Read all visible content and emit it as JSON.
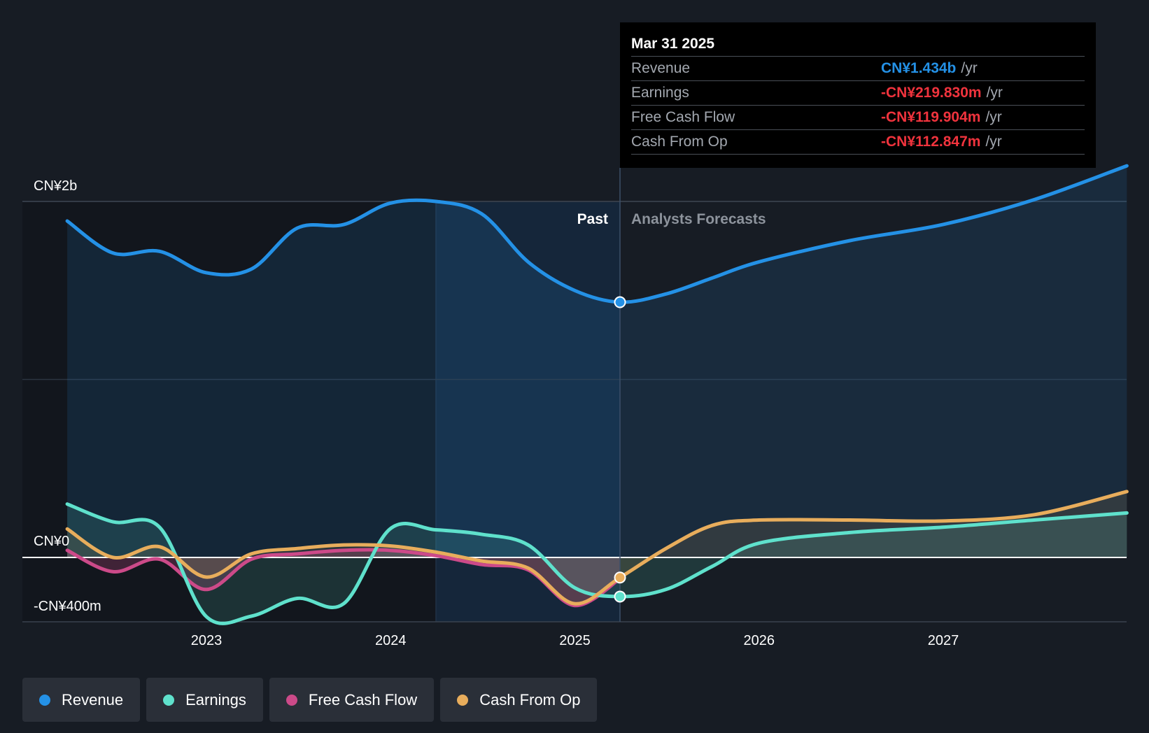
{
  "chart_data": {
    "type": "line",
    "title": "",
    "xlabel": "",
    "ylabel": "",
    "currency_prefix": "CN¥",
    "y_axis_labels": [
      "CN¥2b",
      "CN¥0",
      "-CN¥400m"
    ],
    "x_ticks": [
      "2023",
      "2024",
      "2025",
      "2026",
      "2027"
    ],
    "ylim": [
      -400,
      2000
    ],
    "y_unit": "CN¥m",
    "region_labels": {
      "past": "Past",
      "forecast": "Analysts Forecasts"
    },
    "divider_date": "2025-03-31",
    "series": [
      {
        "name": "Revenue",
        "color": "#2491e6",
        "points": [
          [
            "2022-03-31",
            1890
          ],
          [
            "2022-06-30",
            1710
          ],
          [
            "2022-09-30",
            1720
          ],
          [
            "2022-12-31",
            1600
          ],
          [
            "2023-03-31",
            1620
          ],
          [
            "2023-06-30",
            1850
          ],
          [
            "2023-09-30",
            1870
          ],
          [
            "2023-12-31",
            1990
          ],
          [
            "2024-03-31",
            2000
          ],
          [
            "2024-06-30",
            1930
          ],
          [
            "2024-09-30",
            1660
          ],
          [
            "2024-12-31",
            1500
          ],
          [
            "2025-03-31",
            1434
          ],
          [
            "2025-06-30",
            1480
          ],
          [
            "2025-09-30",
            1570
          ],
          [
            "2025-12-31",
            1660
          ],
          [
            "2026-06-30",
            1780
          ],
          [
            "2026-12-31",
            1870
          ],
          [
            "2027-06-30",
            2010
          ],
          [
            "2027-12-31",
            2200
          ]
        ]
      },
      {
        "name": "Earnings",
        "color": "#5fe1cc",
        "points": [
          [
            "2022-03-31",
            300
          ],
          [
            "2022-06-30",
            200
          ],
          [
            "2022-09-30",
            170
          ],
          [
            "2022-12-31",
            -330
          ],
          [
            "2023-03-31",
            -330
          ],
          [
            "2023-06-30",
            -230
          ],
          [
            "2023-09-30",
            -260
          ],
          [
            "2023-12-31",
            160
          ],
          [
            "2024-03-31",
            155
          ],
          [
            "2024-06-30",
            130
          ],
          [
            "2024-09-30",
            70
          ],
          [
            "2024-12-31",
            -170
          ],
          [
            "2025-03-31",
            -219.83
          ],
          [
            "2025-06-30",
            -180
          ],
          [
            "2025-09-30",
            -50
          ],
          [
            "2025-12-31",
            80
          ],
          [
            "2026-06-30",
            140
          ],
          [
            "2026-12-31",
            170
          ],
          [
            "2027-06-30",
            210
          ],
          [
            "2027-12-31",
            250
          ]
        ]
      },
      {
        "name": "Free Cash Flow",
        "color": "#cc4a89",
        "points": [
          [
            "2022-03-31",
            40
          ],
          [
            "2022-06-30",
            -80
          ],
          [
            "2022-09-30",
            -10
          ],
          [
            "2022-12-31",
            -180
          ],
          [
            "2023-03-31",
            -10
          ],
          [
            "2023-06-30",
            20
          ],
          [
            "2023-09-30",
            40
          ],
          [
            "2023-12-31",
            40
          ],
          [
            "2024-03-31",
            10
          ],
          [
            "2024-06-30",
            -40
          ],
          [
            "2024-09-30",
            -70
          ],
          [
            "2024-12-31",
            -270
          ],
          [
            "2025-03-31",
            -119.904
          ]
        ]
      },
      {
        "name": "Cash From Op",
        "color": "#e8ad5c",
        "points": [
          [
            "2022-03-31",
            160
          ],
          [
            "2022-06-30",
            0
          ],
          [
            "2022-09-30",
            60
          ],
          [
            "2022-12-31",
            -110
          ],
          [
            "2023-03-31",
            20
          ],
          [
            "2023-06-30",
            50
          ],
          [
            "2023-09-30",
            70
          ],
          [
            "2023-12-31",
            65
          ],
          [
            "2024-03-31",
            30
          ],
          [
            "2024-06-30",
            -20
          ],
          [
            "2024-09-30",
            -60
          ],
          [
            "2024-12-31",
            -260
          ],
          [
            "2025-03-31",
            -112.847
          ],
          [
            "2025-06-30",
            50
          ],
          [
            "2025-09-30",
            180
          ],
          [
            "2025-12-31",
            210
          ],
          [
            "2026-06-30",
            210
          ],
          [
            "2026-12-31",
            205
          ],
          [
            "2027-06-30",
            240
          ],
          [
            "2027-12-31",
            370
          ]
        ]
      }
    ]
  },
  "tooltip": {
    "date": "Mar 31 2025",
    "unit": "/yr",
    "rows": [
      {
        "label": "Revenue",
        "value": "CN¥1.434b",
        "color": "#2491e6"
      },
      {
        "label": "Earnings",
        "value": "-CN¥219.830m",
        "color": "#f0333d"
      },
      {
        "label": "Free Cash Flow",
        "value": "-CN¥119.904m",
        "color": "#f0333d"
      },
      {
        "label": "Cash From Op",
        "value": "-CN¥112.847m",
        "color": "#f0333d"
      }
    ]
  },
  "legend": [
    {
      "label": "Revenue",
      "color": "#2491e6"
    },
    {
      "label": "Earnings",
      "color": "#5fe1cc"
    },
    {
      "label": "Free Cash Flow",
      "color": "#cc4a89"
    },
    {
      "label": "Cash From Op",
      "color": "#e8ad5c"
    }
  ]
}
